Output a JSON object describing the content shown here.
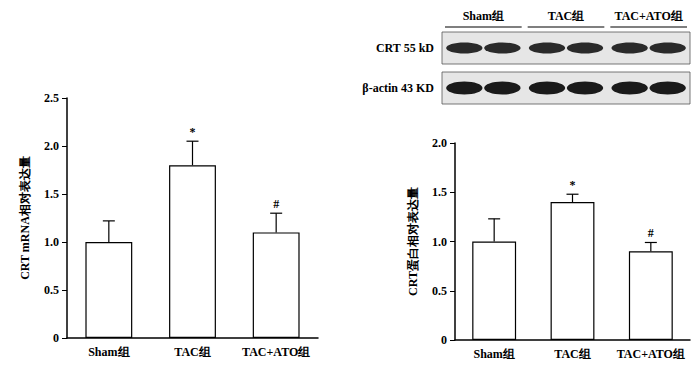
{
  "chart_data": [
    {
      "type": "bar",
      "y_label": "CRT mRNA相对表达量",
      "categories": [
        "Sham组",
        "TAC组",
        "TAC+ATO组"
      ],
      "values": [
        1.0,
        1.8,
        1.1
      ],
      "errors": [
        0.22,
        0.25,
        0.2
      ],
      "annotations": [
        {
          "category": "TAC组",
          "text": "*"
        },
        {
          "category": "TAC+ATO组",
          "text": "#"
        }
      ],
      "color": "#ffffff",
      "ylim": [
        0,
        2.5
      ],
      "yticks": [
        0,
        0.5,
        {
          "value": 1,
          "label": "1.0"
        },
        1.5,
        {
          "value": 2,
          "label": "2.0"
        },
        2.5
      ],
      "grid": false
    },
    {
      "type": "bar",
      "y_label": "CRT蛋白相对表达量",
      "categories": [
        "Sham组",
        "TAC组",
        "TAC+ATO组"
      ],
      "values": [
        1.0,
        1.4,
        0.9
      ],
      "errors": [
        0.23,
        0.08,
        0.09
      ],
      "annotations": [
        {
          "category": "TAC组",
          "text": "*"
        },
        {
          "category": "TAC+ATO组",
          "text": "#"
        }
      ],
      "color": "#ffffff",
      "ylim": [
        0,
        2.0
      ],
      "yticks": [
        0,
        0.5,
        {
          "value": 1,
          "label": "1.0"
        },
        1.5,
        {
          "value": 2,
          "label": "2.0"
        }
      ],
      "grid": false
    }
  ],
  "blot": {
    "columns": [
      "Sham组",
      "TAC组",
      "TAC+ATO组"
    ],
    "rows": [
      "CRT 55 kD",
      "β-actin 43 KD"
    ]
  }
}
